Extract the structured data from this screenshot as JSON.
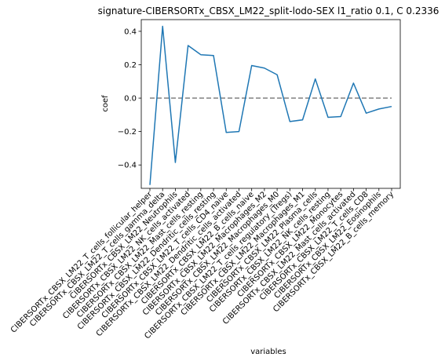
{
  "chart_data": {
    "type": "line",
    "title": "signature-CIBERSORTx_CBSX_LM22_split-lodo-SEX l1_ratio 0.1, C 0.2336",
    "xlabel": "variables",
    "ylabel": "coef",
    "ylim": [
      -0.54,
      0.47
    ],
    "yticks": [
      -0.4,
      -0.2,
      0.0,
      0.2,
      0.4
    ],
    "ytick_labels": [
      "−0.4",
      "−0.2",
      "0.0",
      "0.2",
      "0.4"
    ],
    "grid": false,
    "categories": [
      "CIBERSORTx_CBSX_LM22_T_cells_follicular_helper",
      "CIBERSORTx_CBSX_LM22_T_cells_gamma_delta",
      "CIBERSORTx_CBSX_LM22_Neutrophils",
      "CIBERSORTx_CBSX_LM22_NK_cells_activated",
      "CIBERSORTx_CBSX_LM22_Mast_cells_resting",
      "CIBERSORTx_CBSX_LM22_Dendritic_cells_resting",
      "CIBERSORTx_CBSX_LM22_T_cells_CD4_naive",
      "CIBERSORTx_CBSX_LM22_Dendritic_cells_activated",
      "CIBERSORTx_CBSX_LM22_B_cells_naive",
      "CIBERSORTx_CBSX_LM22_Macrophages_M2",
      "CIBERSORTx_CBSX_LM22_Macrophages_M0",
      "CIBERSORTx_CBSX_LM22_T_cells_regulatory_(Tregs)",
      "CIBERSORTx_CBSX_LM22_Macrophages_M1",
      "CIBERSORTx_CBSX_LM22_Plasma_cells",
      "CIBERSORTx_CBSX_LM22_NK_cells_resting",
      "CIBERSORTx_CBSX_LM22_Monocytes",
      "CIBERSORTx_CBSX_LM22_Mast_cells_activated",
      "CIBERSORTx_CBSX_LM22_T_cells_CD8",
      "CIBERSORTx_CBSX_LM22_Eosinophils",
      "CIBERSORTx_CBSX_LM22_B_cells_memory"
    ],
    "series": [
      {
        "color": "#1f77b4",
        "values": [
          -0.52,
          0.43,
          -0.385,
          0.315,
          0.26,
          0.255,
          -0.205,
          -0.2,
          0.195,
          0.18,
          0.14,
          -0.14,
          -0.13,
          0.115,
          -0.115,
          -0.11,
          0.09,
          -0.09,
          -0.065,
          -0.05
        ]
      }
    ],
    "reference_line": {
      "y": 0.0,
      "style": "dashed",
      "color": "#808080"
    }
  }
}
